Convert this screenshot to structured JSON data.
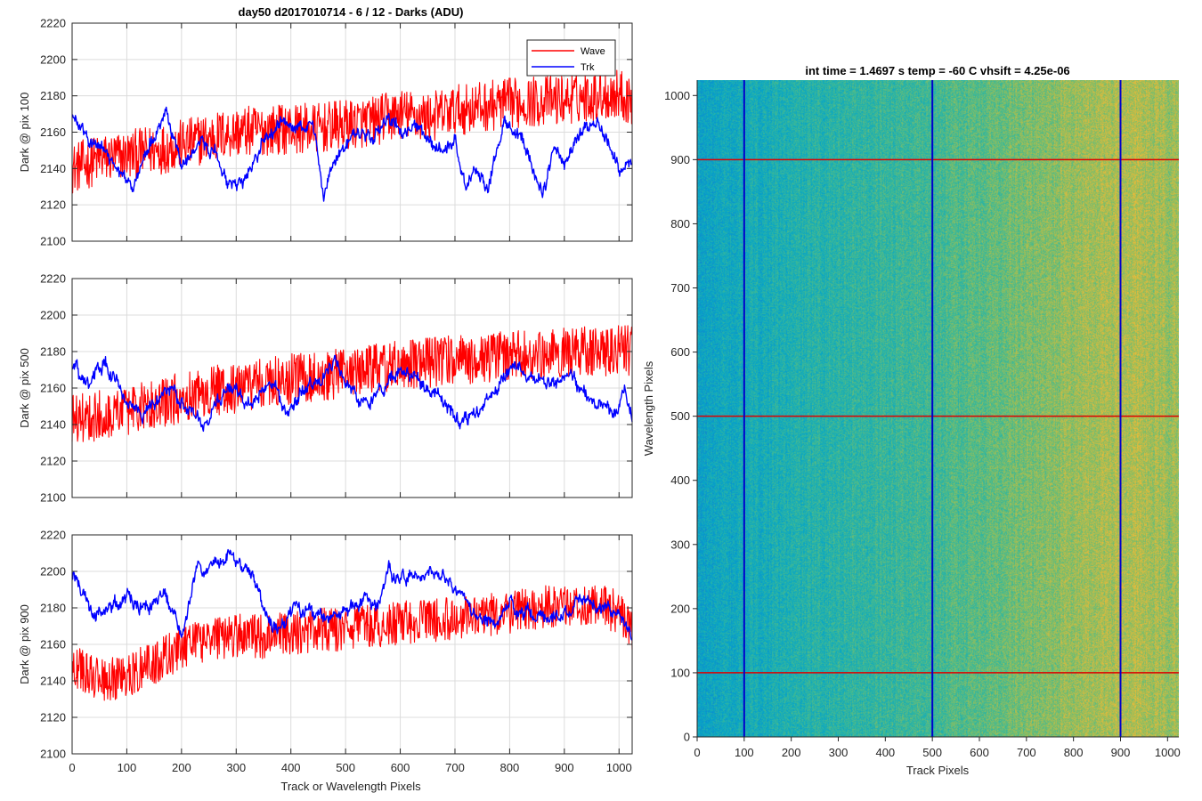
{
  "figure": {
    "title_left": "day50 d2017010714 - 6 / 12 - Darks (ADU)",
    "title_right": "int time = 1.4697 s    temp = -60 C    vhsift = 4.25e-06",
    "xlabel_left": "Track or Wavelength Pixels",
    "xlabel_right": "Track Pixels",
    "ylabel_right": "Wavelength Pixels"
  },
  "colors": {
    "wave": "#ff0000",
    "trk": "#0000ff",
    "grid": "#dcdcdc",
    "axis": "#262626"
  },
  "chart_data": [
    {
      "type": "line",
      "title": "day50 d2017010714 - 6 / 12 - Darks (ADU)",
      "xlabel": "",
      "ylabel": "Dark @ pix 100",
      "xlim": [
        0,
        1024
      ],
      "ylim": [
        2100,
        2220
      ],
      "xticks": [
        0,
        100,
        200,
        300,
        400,
        500,
        600,
        700,
        800,
        900,
        1000
      ],
      "yticks": [
        2100,
        2120,
        2140,
        2160,
        2180,
        2200,
        2220
      ],
      "grid": true,
      "legend": "top-right",
      "noise": {
        "wave": 14,
        "trk": 4
      },
      "series": [
        {
          "name": "Wave",
          "color": "#ff0000",
          "x": [
            0,
            50,
            100,
            150,
            200,
            250,
            300,
            350,
            400,
            450,
            500,
            550,
            600,
            650,
            700,
            750,
            800,
            850,
            900,
            950,
            1000,
            1024
          ],
          "values": [
            2140,
            2145,
            2147,
            2150,
            2153,
            2157,
            2160,
            2161,
            2162,
            2162,
            2164,
            2166,
            2170,
            2168,
            2172,
            2174,
            2176,
            2177,
            2178,
            2180,
            2181,
            2178
          ]
        },
        {
          "name": "Trk",
          "color": "#0000ff",
          "x": [
            0,
            20,
            50,
            80,
            110,
            140,
            170,
            200,
            230,
            260,
            290,
            320,
            350,
            380,
            420,
            440,
            460,
            480,
            500,
            520,
            550,
            580,
            600,
            630,
            660,
            700,
            720,
            740,
            760,
            790,
            830,
            860,
            880,
            900,
            930,
            960,
            980,
            1000,
            1024
          ],
          "values": [
            2168,
            2163,
            2155,
            2140,
            2130,
            2152,
            2172,
            2140,
            2152,
            2150,
            2128,
            2135,
            2158,
            2165,
            2163,
            2160,
            2128,
            2145,
            2152,
            2158,
            2160,
            2165,
            2160,
            2162,
            2150,
            2152,
            2130,
            2140,
            2130,
            2165,
            2155,
            2125,
            2150,
            2145,
            2160,
            2165,
            2155,
            2140,
            2147
          ]
        }
      ]
    },
    {
      "type": "line",
      "title": "",
      "xlabel": "",
      "ylabel": "Dark @ pix 500",
      "xlim": [
        0,
        1024
      ],
      "ylim": [
        2100,
        2220
      ],
      "xticks": [
        0,
        100,
        200,
        300,
        400,
        500,
        600,
        700,
        800,
        900,
        1000
      ],
      "yticks": [
        2100,
        2120,
        2140,
        2160,
        2180,
        2200,
        2220
      ],
      "grid": true,
      "noise": {
        "wave": 14,
        "trk": 4
      },
      "series": [
        {
          "name": "Wave",
          "color": "#ff0000",
          "x": [
            0,
            50,
            100,
            150,
            200,
            250,
            300,
            350,
            400,
            450,
            500,
            550,
            600,
            650,
            700,
            750,
            800,
            850,
            900,
            950,
            1000,
            1024
          ],
          "values": [
            2143,
            2145,
            2148,
            2150,
            2155,
            2158,
            2160,
            2163,
            2165,
            2166,
            2168,
            2170,
            2172,
            2174,
            2175,
            2176,
            2178,
            2179,
            2180,
            2180,
            2181,
            2180
          ]
        },
        {
          "name": "Trk",
          "color": "#0000ff",
          "x": [
            0,
            30,
            60,
            90,
            120,
            150,
            180,
            210,
            240,
            270,
            300,
            330,
            360,
            390,
            420,
            450,
            480,
            510,
            540,
            570,
            600,
            630,
            660,
            690,
            720,
            750,
            780,
            810,
            850,
            880,
            910,
            940,
            970,
            990,
            1010,
            1024
          ],
          "values": [
            2172,
            2160,
            2175,
            2158,
            2145,
            2150,
            2160,
            2150,
            2138,
            2155,
            2160,
            2150,
            2165,
            2148,
            2158,
            2162,
            2175,
            2158,
            2152,
            2162,
            2170,
            2165,
            2160,
            2150,
            2140,
            2150,
            2165,
            2175,
            2165,
            2160,
            2168,
            2155,
            2150,
            2145,
            2158,
            2140
          ]
        }
      ]
    },
    {
      "type": "line",
      "title": "",
      "xlabel": "Track or Wavelength Pixels",
      "ylabel": "Dark @ pix 900",
      "xlim": [
        0,
        1024
      ],
      "ylim": [
        2100,
        2220
      ],
      "xticks": [
        0,
        100,
        200,
        300,
        400,
        500,
        600,
        700,
        800,
        900,
        1000
      ],
      "yticks": [
        2100,
        2120,
        2140,
        2160,
        2180,
        2200,
        2220
      ],
      "grid": true,
      "noise": {
        "wave": 12,
        "trk": 4
      },
      "series": [
        {
          "name": "Wave",
          "color": "#ff0000",
          "x": [
            0,
            50,
            100,
            150,
            200,
            250,
            300,
            350,
            400,
            450,
            500,
            550,
            600,
            650,
            700,
            750,
            800,
            850,
            900,
            950,
            1000,
            1024
          ],
          "values": [
            2148,
            2140,
            2143,
            2150,
            2158,
            2162,
            2165,
            2164,
            2166,
            2168,
            2168,
            2170,
            2172,
            2173,
            2174,
            2175,
            2178,
            2180,
            2181,
            2182,
            2178,
            2165
          ]
        },
        {
          "name": "Trk",
          "color": "#0000ff",
          "x": [
            0,
            20,
            40,
            70,
            110,
            140,
            170,
            200,
            230,
            260,
            290,
            320,
            340,
            360,
            380,
            410,
            430,
            460,
            500,
            520,
            560,
            580,
            600,
            620,
            640,
            680,
            710,
            740,
            770,
            800,
            840,
            880,
            920,
            960,
            1000,
            1024
          ],
          "values": [
            2200,
            2190,
            2175,
            2180,
            2185,
            2180,
            2190,
            2165,
            2200,
            2205,
            2210,
            2200,
            2190,
            2170,
            2172,
            2180,
            2175,
            2175,
            2178,
            2185,
            2180,
            2200,
            2195,
            2200,
            2195,
            2200,
            2185,
            2175,
            2172,
            2180,
            2175,
            2175,
            2180,
            2182,
            2178,
            2165
          ]
        }
      ]
    },
    {
      "type": "heatmap",
      "title": "int time = 1.4697 s    temp = -60 C    vhsift = 4.25e-06",
      "xlabel": "Track Pixels",
      "ylabel": "Wavelength Pixels",
      "xlim": [
        0,
        1024
      ],
      "ylim": [
        0,
        1024
      ],
      "xticks": [
        0,
        100,
        200,
        300,
        400,
        500,
        600,
        700,
        800,
        900,
        1000
      ],
      "yticks": [
        0,
        100,
        200,
        300,
        400,
        500,
        600,
        700,
        800,
        900,
        1000
      ],
      "colormap": "parula",
      "value_range": [
        2120,
        2200
      ],
      "column_trend": {
        "x": [
          0,
          100,
          300,
          500,
          700,
          900,
          1024
        ],
        "values": [
          2150,
          2154,
          2160,
          2164,
          2172,
          2180,
          2176
        ]
      },
      "vertical_markers": [
        100,
        500,
        900
      ],
      "horizontal_markers": [
        100,
        500,
        900
      ],
      "vertical_marker_color": "#0000cc",
      "horizontal_marker_color": "#dd0000"
    }
  ]
}
